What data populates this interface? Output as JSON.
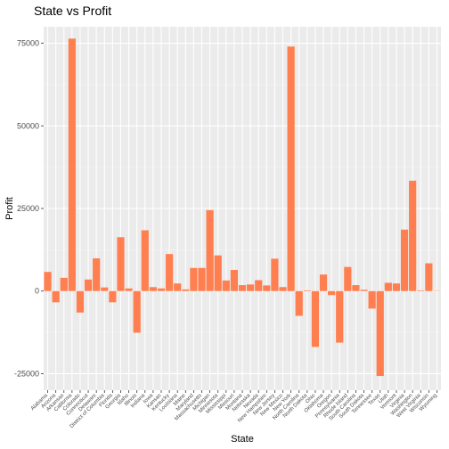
{
  "chart_data": {
    "type": "bar",
    "title": "State vs Profit",
    "xlabel": "State",
    "ylabel": "Profit",
    "ylim": [
      -30000,
      80000
    ],
    "yticks": [
      -25000,
      0,
      25000,
      50000,
      75000
    ],
    "ytick_labels": [
      "-25000",
      "0",
      "25000",
      "50000",
      "75000"
    ],
    "grid": true,
    "colors": {
      "bar": "#ff7f50",
      "panel": "#ebebeb",
      "grid_major": "#ffffff",
      "grid_minor": "#f5f5f5",
      "tick_text": "#4d4d4d"
    },
    "categories": [
      "Alabama",
      "Arizona",
      "Arkansas",
      "California",
      "Colorado",
      "Connecticut",
      "Delaware",
      "District of Columbia",
      "Florida",
      "Georgia",
      "Idaho",
      "Illinois",
      "Indiana",
      "Iowa",
      "Kansas",
      "Kentucky",
      "Louisiana",
      "Maine",
      "Maryland",
      "Massachusetts",
      "Michigan",
      "Minnesota",
      "Mississippi",
      "Missouri",
      "Montana",
      "Nebraska",
      "Nevada",
      "New Hampshire",
      "New Jersey",
      "New Mexico",
      "New York",
      "North Carolina",
      "North Dakota",
      "Ohio",
      "Oklahoma",
      "Oregon",
      "Pennsylvania",
      "Rhode Island",
      "South Carolina",
      "South Dakota",
      "Tennessee",
      "Texas",
      "Utah",
      "Vermont",
      "Virginia",
      "Washington",
      "West Virginia",
      "Wisconsin",
      "Wyoming"
    ],
    "values": [
      5800,
      -3400,
      4000,
      76400,
      -6500,
      3500,
      9900,
      1100,
      -3400,
      16300,
      800,
      -12600,
      18400,
      1200,
      800,
      11200,
      2300,
      500,
      7000,
      7000,
      24500,
      10800,
      3200,
      6400,
      1800,
      2000,
      3300,
      1700,
      9800,
      1200,
      74000,
      -7500,
      200,
      -16900,
      5000,
      -1200,
      -15600,
      7300,
      1800,
      400,
      -5300,
      -25700,
      2500,
      2300,
      18600,
      33400,
      200,
      8400,
      100
    ]
  }
}
